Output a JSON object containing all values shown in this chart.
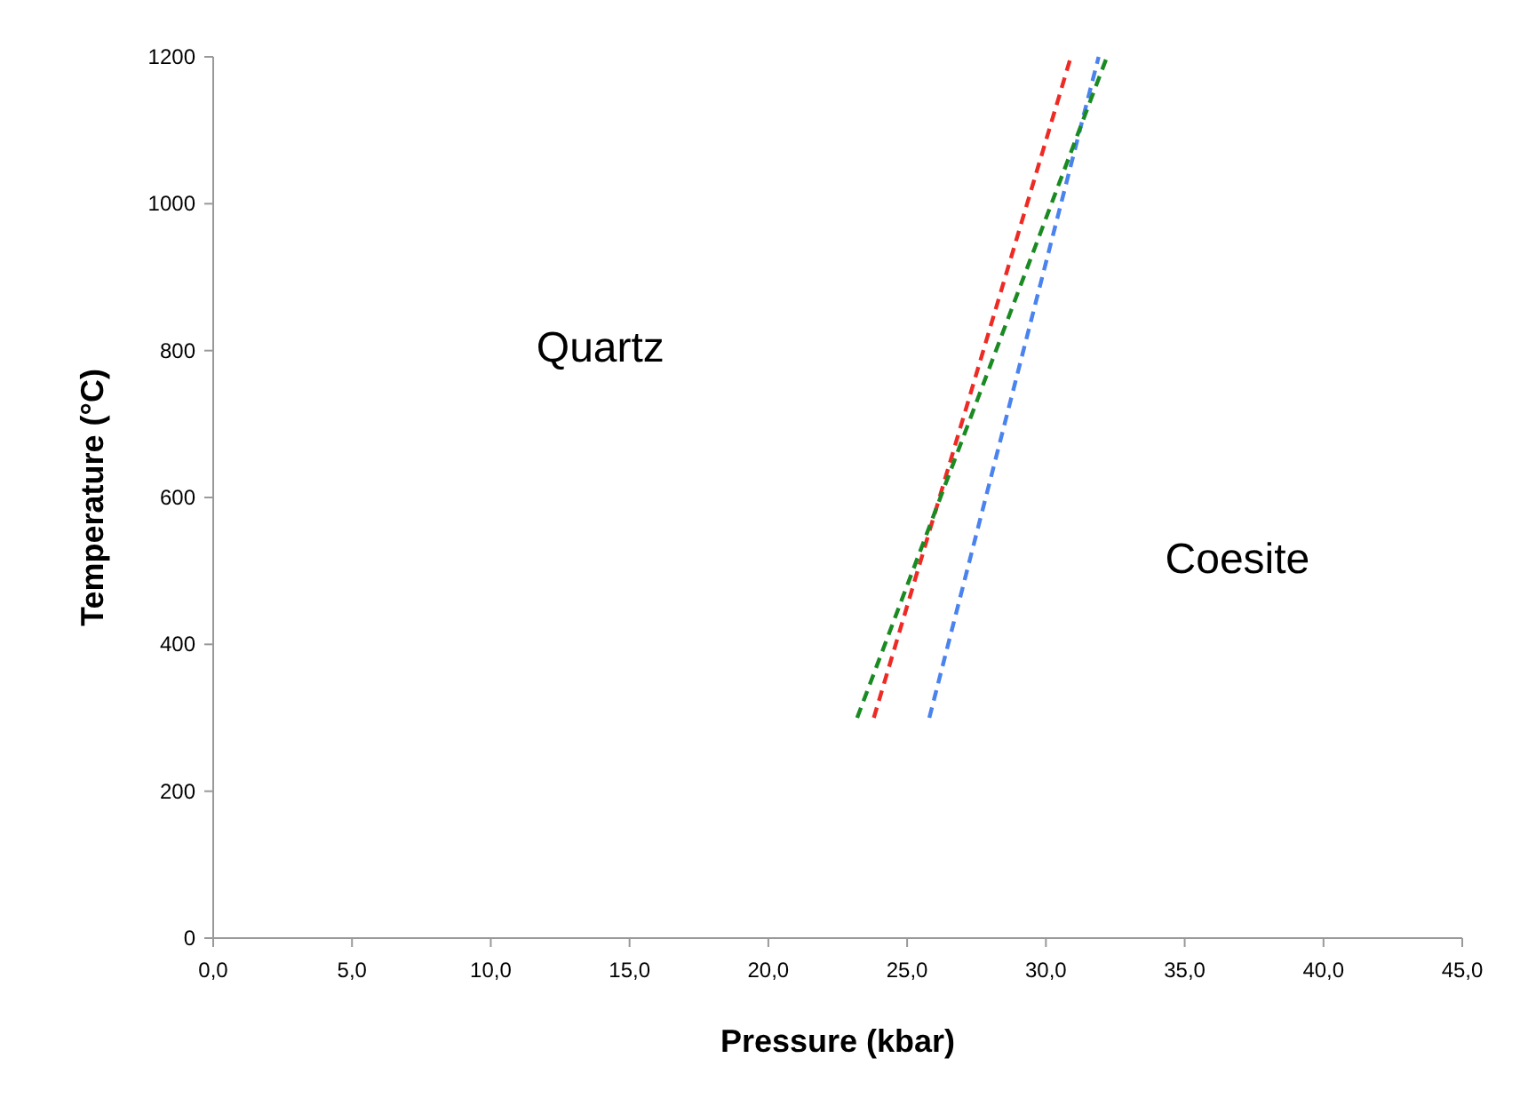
{
  "chart_data": {
    "type": "line",
    "xlabel": "Pressure (kbar)",
    "ylabel": "Temperature (°C)",
    "xlim": [
      0,
      45
    ],
    "ylim": [
      0,
      1200
    ],
    "xticks": [
      {
        "value": 0,
        "label": "0,0"
      },
      {
        "value": 5,
        "label": "5,0"
      },
      {
        "value": 10,
        "label": "10,0"
      },
      {
        "value": 15,
        "label": "15,0"
      },
      {
        "value": 20,
        "label": "20,0"
      },
      {
        "value": 25,
        "label": "25,0"
      },
      {
        "value": 30,
        "label": "30,0"
      },
      {
        "value": 35,
        "label": "35,0"
      },
      {
        "value": 40,
        "label": "40,0"
      },
      {
        "value": 45,
        "label": "45,0"
      }
    ],
    "yticks": [
      0,
      200,
      400,
      600,
      800,
      1000,
      1200
    ],
    "grid": false,
    "marker": "none",
    "line_style": "dashed",
    "series": [
      {
        "color": "#ee2a24",
        "x": [
          23.8,
          30.9
        ],
        "values": [
          300,
          1200
        ]
      },
      {
        "color": "#4a82ee",
        "x": [
          25.8,
          31.9
        ],
        "values": [
          300,
          1200
        ]
      },
      {
        "color": "#1a8a22",
        "x": [
          23.2,
          32.2
        ],
        "values": [
          300,
          1200
        ]
      }
    ],
    "annotations": [
      "Quartz",
      "Coesite"
    ]
  }
}
